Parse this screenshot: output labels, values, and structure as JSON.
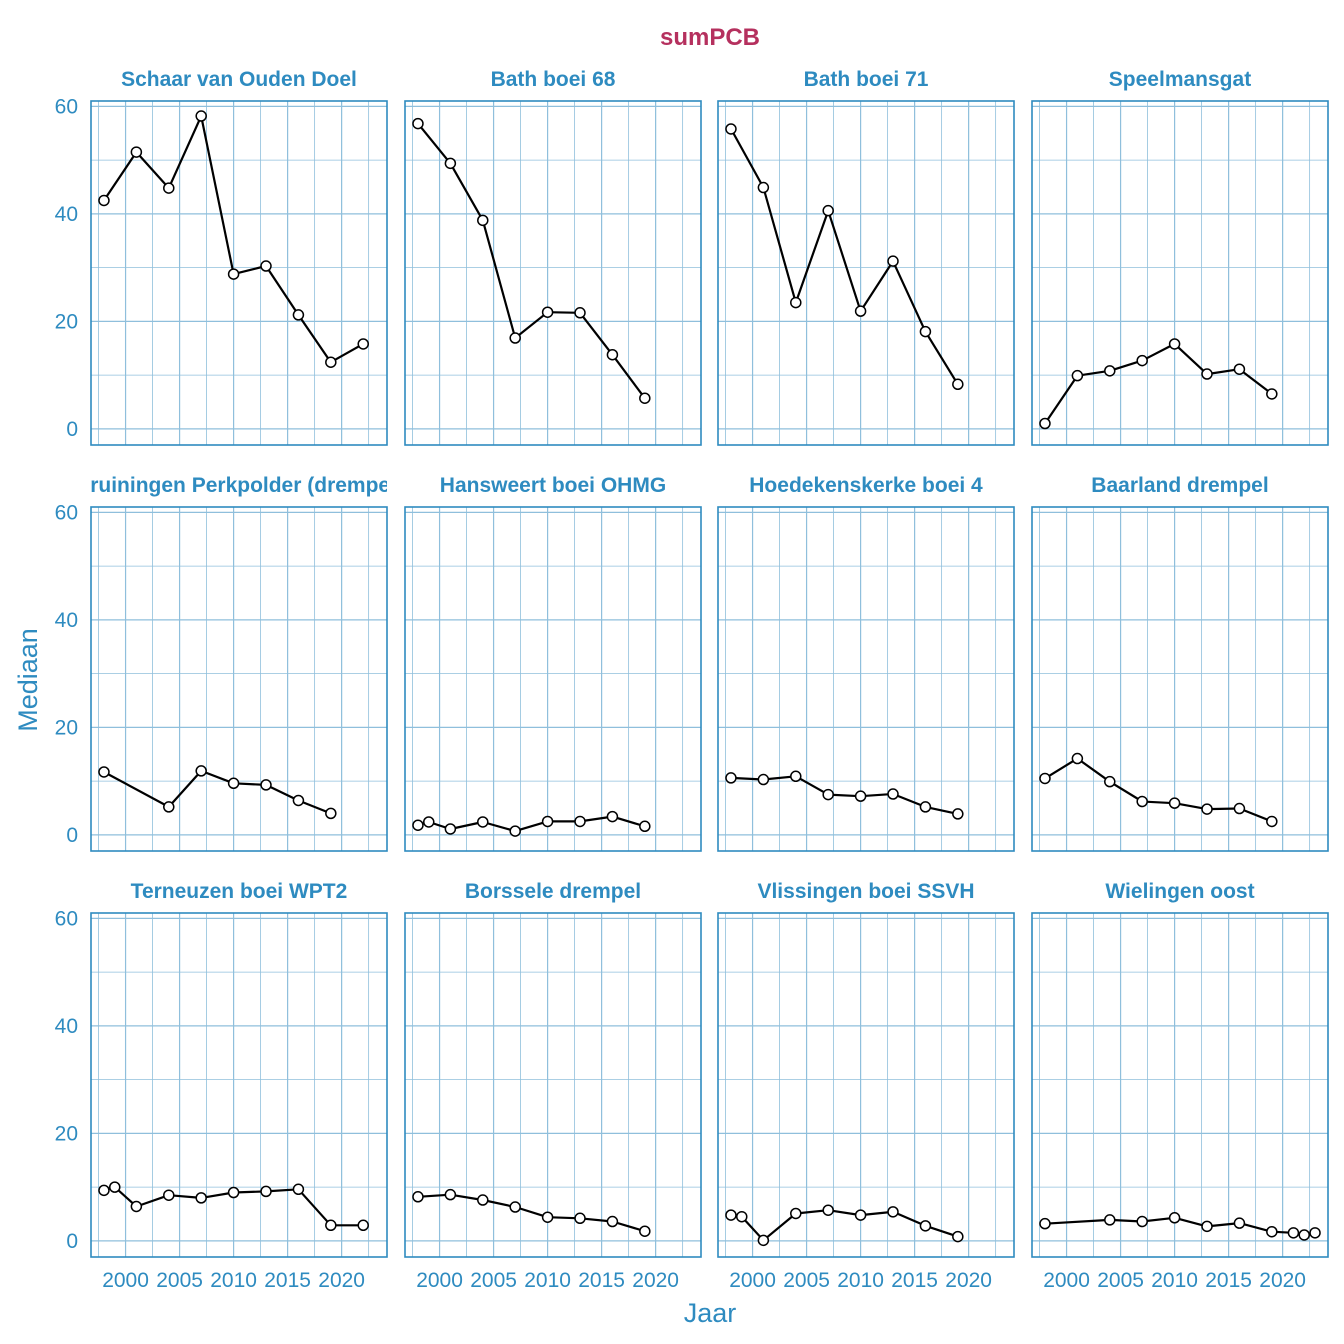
{
  "chart_data": {
    "type": "line",
    "title": "sumPCB",
    "xlabel": "Jaar",
    "ylabel": "Mediaan",
    "xlim": [
      1996.8,
      2024.2
    ],
    "ylim": [
      -3,
      61
    ],
    "x_ticks": [
      2000,
      2005,
      2010,
      2015,
      2020
    ],
    "y_ticks": [
      0,
      20,
      40,
      60
    ],
    "x_tick_labels": [
      "2000",
      "2005",
      "2010",
      "2015",
      "2020"
    ],
    "y_tick_labels": [
      "0",
      "20",
      "40",
      "60"
    ],
    "grid": true,
    "colors": {
      "title": "#b5305e",
      "axis_text": "#2e8bc0",
      "panel_border": "#2e8bc0",
      "grid": "#8fbfdc",
      "line": "#000000",
      "point_fill": "#ffffff"
    },
    "panels": [
      {
        "name": "Schaar van Ouden Doel",
        "x": [
          1998,
          2001,
          2004,
          2007,
          2010,
          2013,
          2016,
          2019,
          2022
        ],
        "y": [
          42.5,
          51.5,
          44.8,
          58.2,
          28.8,
          30.3,
          21.2,
          12.4,
          15.8
        ]
      },
      {
        "name": "Bath boei 68",
        "x": [
          1998,
          2001,
          2004,
          2007,
          2010,
          2013,
          2016,
          2019
        ],
        "y": [
          56.8,
          49.4,
          38.8,
          16.9,
          21.7,
          21.6,
          13.8,
          5.7
        ]
      },
      {
        "name": "Bath boei 71",
        "x": [
          1998,
          2001,
          2004,
          2007,
          2010,
          2013,
          2016,
          2019
        ],
        "y": [
          55.8,
          44.9,
          23.5,
          40.6,
          21.9,
          31.2,
          18.1,
          8.3
        ]
      },
      {
        "name": "Speelmansgat",
        "x": [
          1998,
          2001,
          2004,
          2007,
          2010,
          2013,
          2016,
          2019
        ],
        "y": [
          1.0,
          9.9,
          10.8,
          12.7,
          15.8,
          10.2,
          11.1,
          6.5
        ]
      },
      {
        "name": "Kruiningen Perkpolder (drempel)",
        "x": [
          1998,
          2004,
          2007,
          2010,
          2013,
          2016,
          2019
        ],
        "y": [
          11.7,
          5.2,
          11.9,
          9.6,
          9.3,
          6.4,
          4.0
        ]
      },
      {
        "name": "Hansweert boei OHMG",
        "x": [
          1998,
          1999,
          2001,
          2004,
          2007,
          2010,
          2013,
          2016,
          2019
        ],
        "y": [
          1.8,
          2.4,
          1.1,
          2.4,
          0.7,
          2.5,
          2.5,
          3.4,
          1.6
        ]
      },
      {
        "name": "Hoedekenskerke boei 4",
        "x": [
          1998,
          2001,
          2004,
          2007,
          2010,
          2013,
          2016,
          2019
        ],
        "y": [
          10.6,
          10.3,
          10.9,
          7.5,
          7.2,
          7.6,
          5.2,
          3.9
        ]
      },
      {
        "name": "Baarland drempel",
        "x": [
          1998,
          2001,
          2004,
          2007,
          2010,
          2013,
          2016,
          2019
        ],
        "y": [
          10.5,
          14.2,
          9.9,
          6.2,
          5.9,
          4.8,
          4.9,
          2.5
        ]
      },
      {
        "name": "Terneuzen boei WPT2",
        "x": [
          1998,
          1999,
          2001,
          2004,
          2007,
          2010,
          2013,
          2016,
          2019,
          2022
        ],
        "y": [
          9.4,
          10.0,
          6.4,
          8.5,
          8.0,
          9.0,
          9.2,
          9.6,
          2.9,
          2.9
        ]
      },
      {
        "name": "Borssele drempel",
        "x": [
          1998,
          2001,
          2004,
          2007,
          2010,
          2013,
          2016,
          2019
        ],
        "y": [
          8.2,
          8.6,
          7.6,
          6.3,
          4.4,
          4.2,
          3.6,
          1.8
        ]
      },
      {
        "name": "Vlissingen boei SSVH",
        "x": [
          1998,
          1999,
          2001,
          2004,
          2007,
          2010,
          2013,
          2016,
          2019
        ],
        "y": [
          4.8,
          4.5,
          0.1,
          5.1,
          5.7,
          4.8,
          5.4,
          2.8,
          0.8
        ]
      },
      {
        "name": "Wielingen oost",
        "x": [
          1998,
          2004,
          2007,
          2010,
          2013,
          2016,
          2019,
          2021,
          2022,
          2023
        ],
        "y": [
          3.2,
          3.9,
          3.6,
          4.3,
          2.7,
          3.3,
          1.7,
          1.5,
          1.1,
          1.5
        ]
      }
    ]
  }
}
